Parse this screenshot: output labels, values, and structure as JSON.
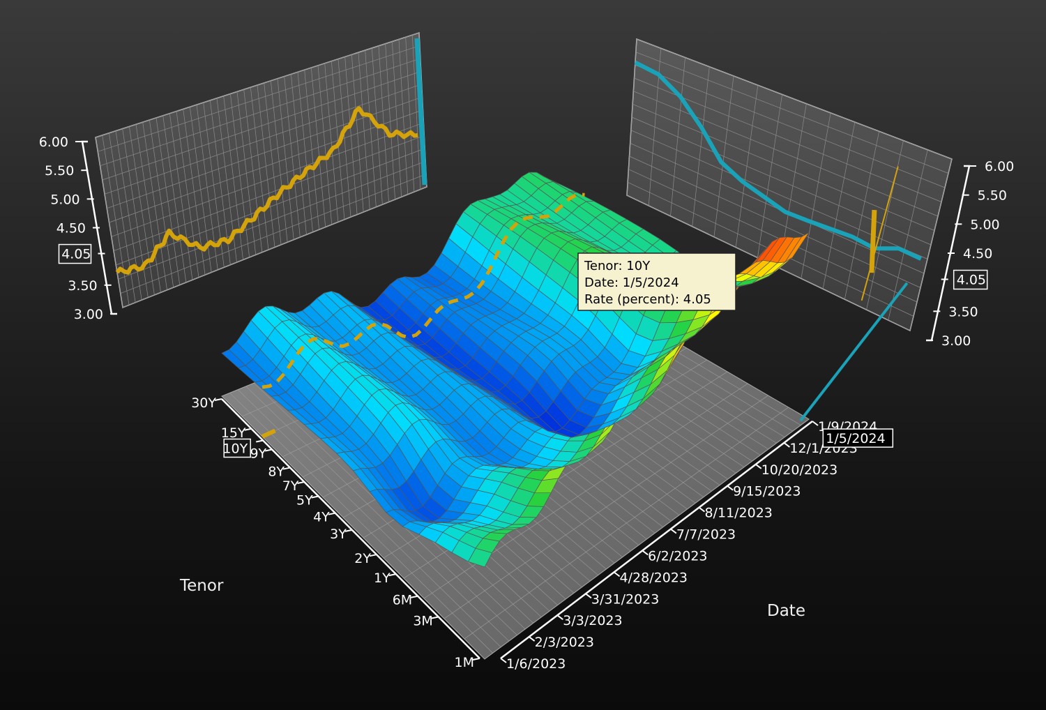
{
  "chart_data": {
    "type": "surface",
    "title": "",
    "xlabel": "Date",
    "ylabel": "Tenor",
    "zlabel": "Rate (percent)",
    "date_ticks": [
      "1/6/2023",
      "2/3/2023",
      "3/3/2023",
      "3/31/2023",
      "4/28/2023",
      "6/2/2023",
      "7/7/2023",
      "8/11/2023",
      "9/15/2023",
      "10/20/2023",
      "12/1/2023",
      "1/9/2024"
    ],
    "tenor_ticks": [
      "1M",
      "3M",
      "6M",
      "1Y",
      "2Y",
      "3Y",
      "4Y",
      "5Y",
      "7Y",
      "8Y",
      "9Y",
      "10Y",
      "15Y",
      "30Y"
    ],
    "rate_ticks": [
      "3.00",
      "3.50",
      "4.05",
      "4.50",
      "5.00",
      "5.50",
      "6.00"
    ],
    "zlim": [
      3.0,
      6.0
    ],
    "date_marker": "1/5/2024",
    "tenor_marker": "10Y",
    "rate_marker": "4.05",
    "tooltip": {
      "line1": "Tenor: 10Y",
      "line2": "Date: 1/5/2024",
      "line3": "Rate (percent): 4.05"
    },
    "series": [
      {
        "tenor": "10Y",
        "x": [
          "1/6/2023",
          "2/3/2023",
          "3/3/2023",
          "3/31/2023",
          "4/28/2023",
          "6/2/2023",
          "7/7/2023",
          "8/11/2023",
          "9/15/2023",
          "10/20/2023",
          "12/1/2023",
          "1/5/2024"
        ],
        "values": [
          3.62,
          3.55,
          3.95,
          3.5,
          3.45,
          3.68,
          3.94,
          4.15,
          4.35,
          4.95,
          4.28,
          4.05
        ]
      }
    ],
    "tenor_profile": {
      "date": "1/5/2024",
      "tenors": [
        "1M",
        "3M",
        "6M",
        "1Y",
        "2Y",
        "3Y",
        "4Y",
        "5Y",
        "7Y",
        "8Y",
        "9Y",
        "10Y",
        "15Y",
        "30Y"
      ],
      "values": [
        5.55,
        5.5,
        5.25,
        4.85,
        4.38,
        4.2,
        4.1,
        4.0,
        4.02,
        4.05,
        4.08,
        4.05,
        4.22,
        4.21
      ]
    }
  }
}
